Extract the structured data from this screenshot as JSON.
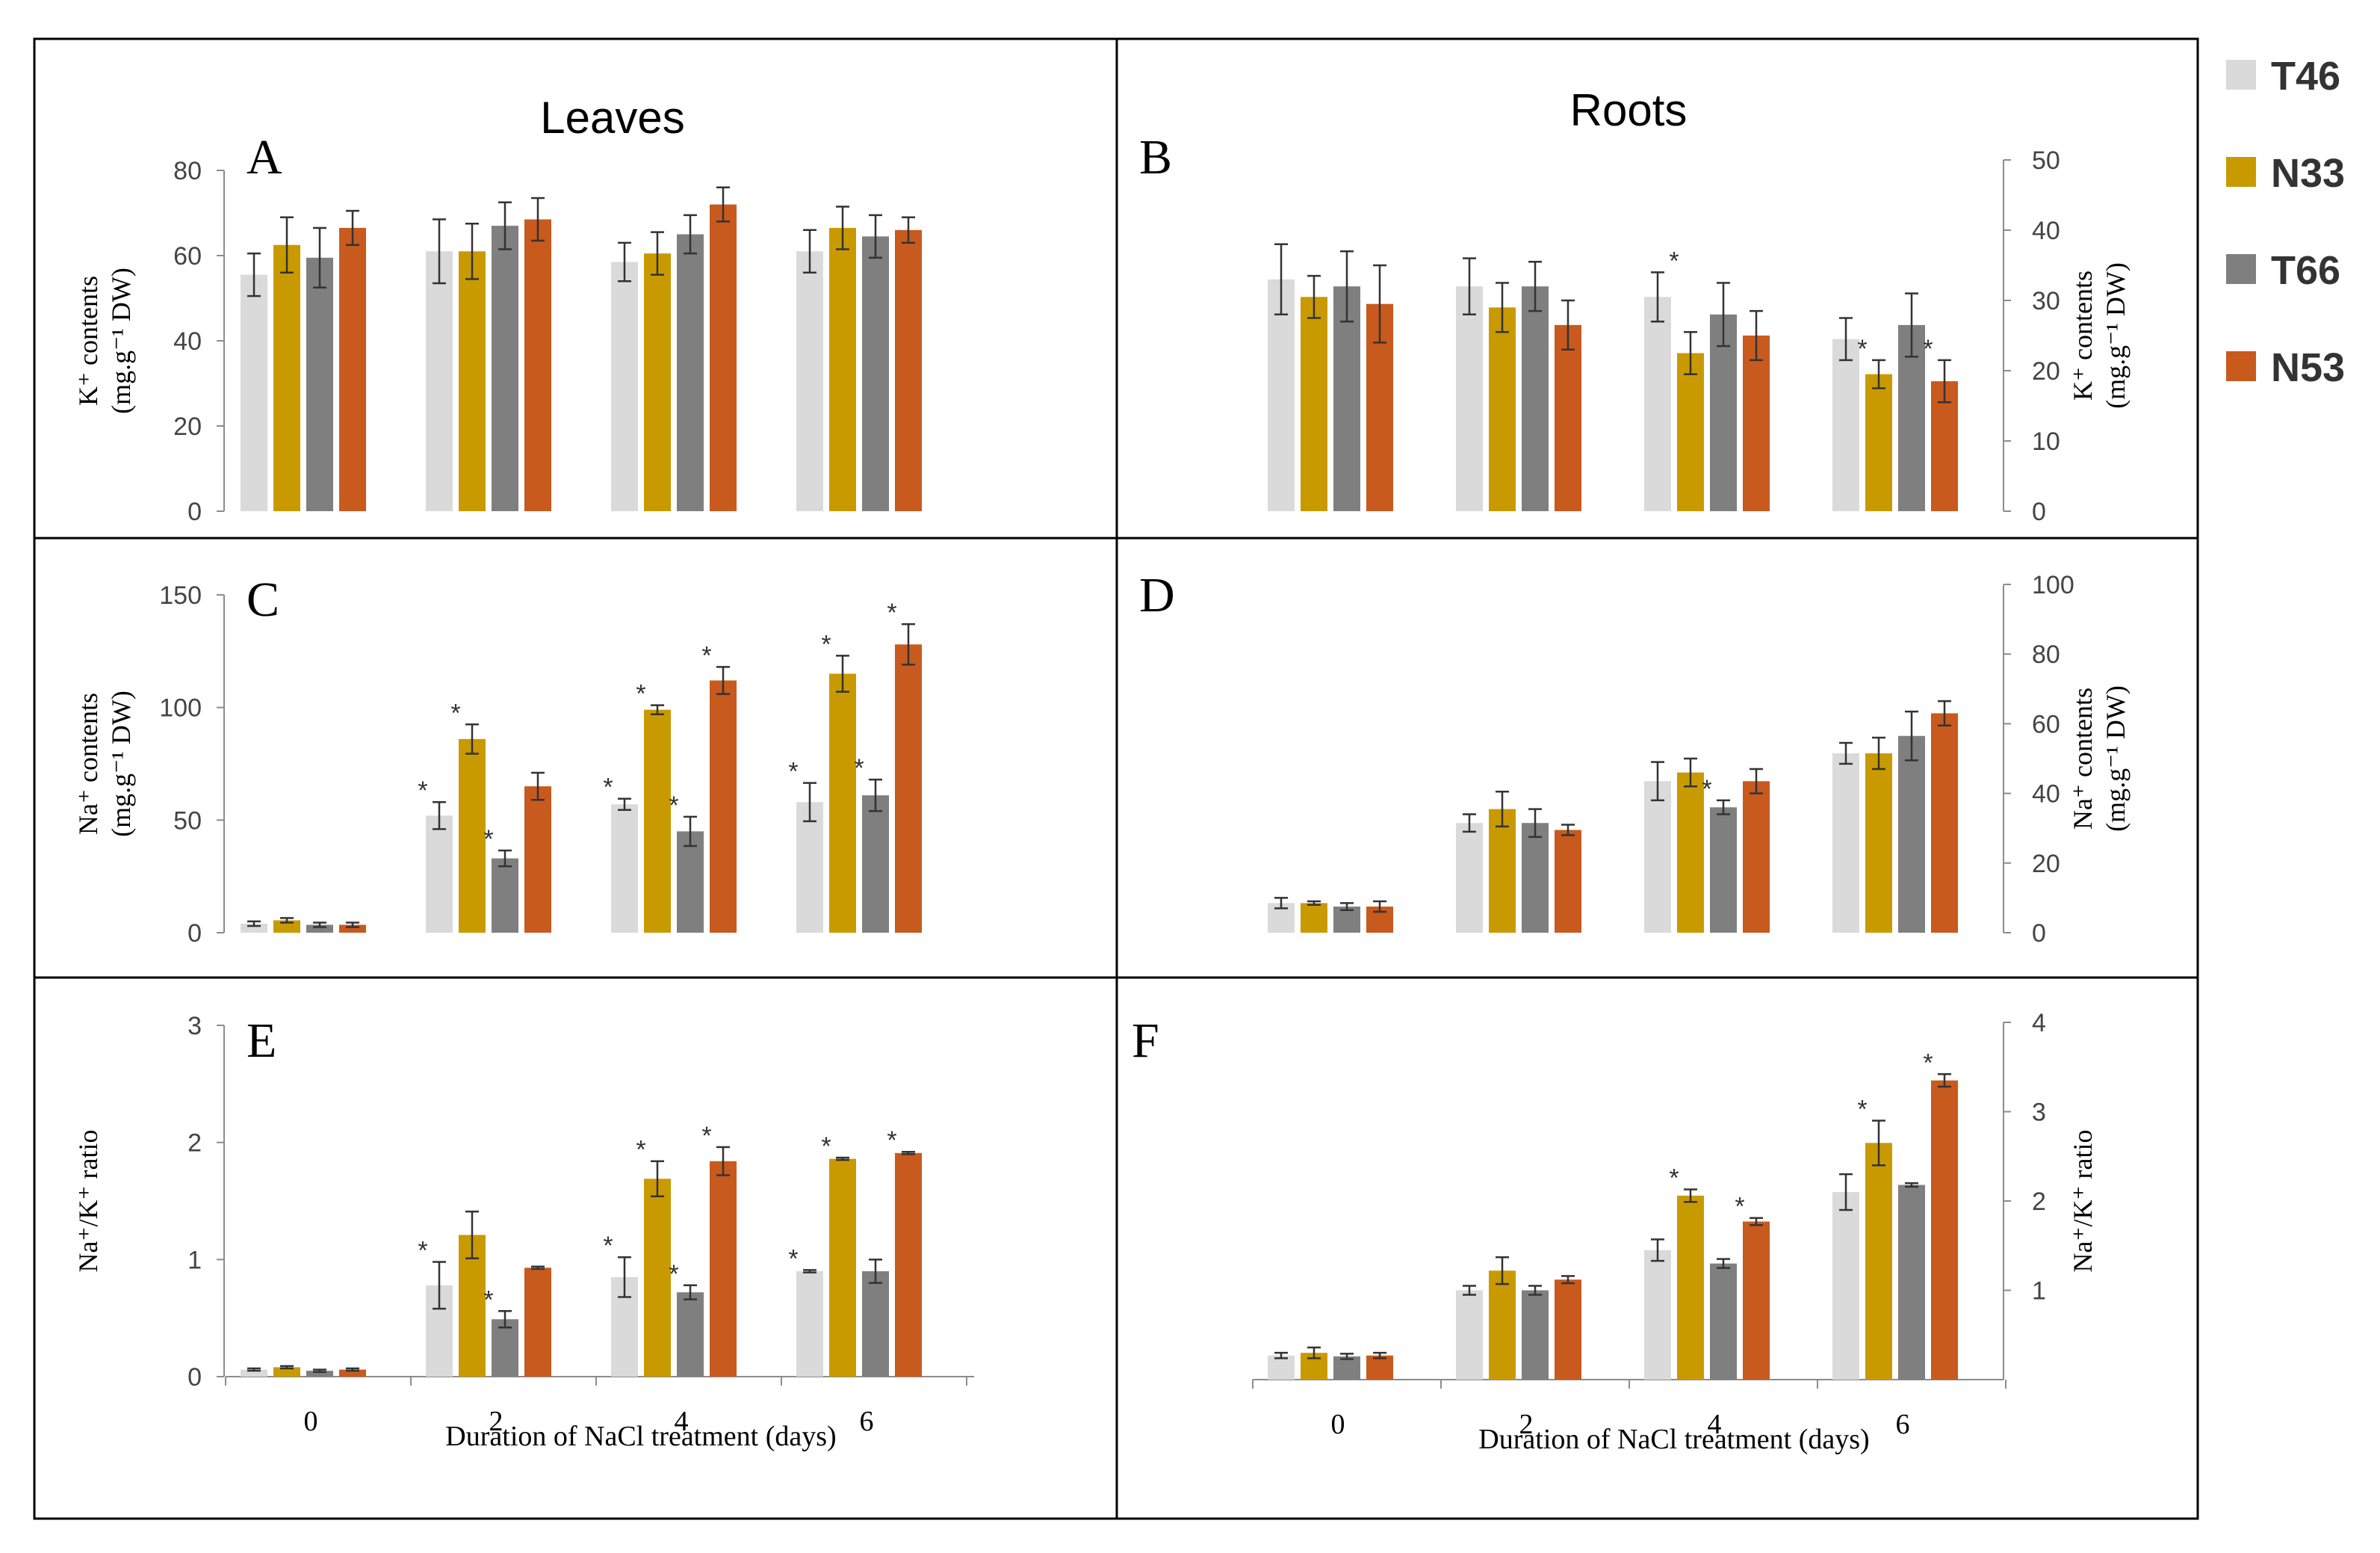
{
  "figure": {
    "column_titles": [
      "Leaves",
      "Roots"
    ],
    "xlabel": "Duration of NaCl treatment (days)",
    "legend": [
      {
        "name": "T46",
        "color": "#dadada"
      },
      {
        "name": "N33",
        "color": "#c99a00"
      },
      {
        "name": "T66",
        "color": "#7f7f7f"
      },
      {
        "name": "N53",
        "color": "#c85a1e"
      }
    ]
  },
  "chart_data": [
    {
      "panel": "A",
      "type": "bar",
      "organ": "Leaves",
      "ylabel_main": "K⁺ contents",
      "ylabel_unit": "(mg.g⁻¹ DW)",
      "yaxis_side": "left",
      "ylim": [
        0,
        80
      ],
      "yticks": [
        0,
        20,
        40,
        60,
        80
      ],
      "categories": [
        "0",
        "2",
        "4",
        "6"
      ],
      "series": [
        {
          "name": "T46",
          "values": [
            55.5,
            61,
            58.5,
            61
          ],
          "errors": [
            5,
            7.5,
            4.5,
            5
          ],
          "sig": [
            false,
            false,
            false,
            false
          ]
        },
        {
          "name": "N33",
          "values": [
            62.5,
            61,
            60.5,
            66.5
          ],
          "errors": [
            6.5,
            6.5,
            5,
            5
          ],
          "sig": [
            false,
            false,
            false,
            false
          ]
        },
        {
          "name": "T66",
          "values": [
            59.5,
            67,
            65,
            64.5
          ],
          "errors": [
            7,
            5.5,
            4.5,
            5
          ],
          "sig": [
            false,
            false,
            false,
            false
          ]
        },
        {
          "name": "N53",
          "values": [
            66.5,
            68.5,
            72,
            66
          ],
          "errors": [
            4,
            5,
            4,
            3
          ],
          "sig": [
            false,
            false,
            false,
            false
          ]
        }
      ]
    },
    {
      "panel": "B",
      "type": "bar",
      "organ": "Roots",
      "ylabel_main": "K⁺ contents",
      "ylabel_unit": "(mg.g⁻¹ DW)",
      "yaxis_side": "right",
      "ylim": [
        0,
        50
      ],
      "yticks": [
        0,
        10,
        20,
        30,
        40,
        50
      ],
      "categories": [
        "0",
        "2",
        "4",
        "6"
      ],
      "series": [
        {
          "name": "T46",
          "values": [
            33,
            32,
            30.5,
            24.5
          ],
          "errors": [
            5,
            4,
            3.5,
            3
          ],
          "sig": [
            false,
            false,
            true,
            false
          ]
        },
        {
          "name": "N33",
          "values": [
            30.5,
            29,
            22.5,
            19.5
          ],
          "errors": [
            3,
            3.5,
            3,
            2
          ],
          "sig": [
            false,
            false,
            false,
            true
          ]
        },
        {
          "name": "T66",
          "values": [
            32,
            32,
            28,
            26.5
          ],
          "errors": [
            5,
            3.5,
            4.5,
            4.5
          ],
          "sig": [
            false,
            false,
            false,
            false
          ]
        },
        {
          "name": "N53",
          "values": [
            29.5,
            26.5,
            25,
            18.5
          ],
          "errors": [
            5.5,
            3.5,
            3.5,
            3
          ],
          "sig": [
            false,
            false,
            false,
            true
          ]
        }
      ]
    },
    {
      "panel": "C",
      "type": "bar",
      "organ": "Leaves",
      "ylabel_main": "Na⁺ contents",
      "ylabel_unit": "(mg.g⁻¹ DW)",
      "yaxis_side": "left",
      "ylim": [
        0,
        150
      ],
      "yticks": [
        0,
        50,
        100,
        150
      ],
      "categories": [
        "0",
        "2",
        "4",
        "6"
      ],
      "series": [
        {
          "name": "T46",
          "values": [
            4,
            52,
            57,
            58
          ],
          "errors": [
            1,
            6,
            2.5,
            8.5
          ],
          "sig": [
            false,
            true,
            true,
            true
          ]
        },
        {
          "name": "N33",
          "values": [
            5.5,
            86,
            99,
            115
          ],
          "errors": [
            1,
            6.5,
            2,
            8
          ],
          "sig": [
            false,
            true,
            true,
            true
          ]
        },
        {
          "name": "T66",
          "values": [
            3.5,
            33,
            45,
            61
          ],
          "errors": [
            1,
            3.5,
            6.5,
            7
          ],
          "sig": [
            false,
            true,
            true,
            true
          ]
        },
        {
          "name": "N53",
          "values": [
            3.5,
            65,
            112,
            128
          ],
          "errors": [
            1,
            6,
            6,
            9
          ],
          "sig": [
            false,
            false,
            true,
            true
          ]
        }
      ]
    },
    {
      "panel": "D",
      "type": "bar",
      "organ": "Roots",
      "ylabel_main": "Na⁺ contents",
      "ylabel_unit": "(mg.g⁻¹ DW)",
      "yaxis_side": "right",
      "ylim": [
        0,
        100
      ],
      "yticks": [
        0,
        20,
        40,
        60,
        80,
        100
      ],
      "categories": [
        "0",
        "2",
        "4",
        "6"
      ],
      "series": [
        {
          "name": "T46",
          "values": [
            8.5,
            31.5,
            43.5,
            51.5
          ],
          "errors": [
            1.5,
            2.5,
            5.5,
            3
          ],
          "sig": [
            false,
            false,
            false,
            false
          ]
        },
        {
          "name": "N33",
          "values": [
            8.5,
            35.5,
            46,
            51.5
          ],
          "errors": [
            0.5,
            5,
            4,
            4.5
          ],
          "sig": [
            false,
            false,
            false,
            false
          ]
        },
        {
          "name": "T66",
          "values": [
            7.5,
            31.5,
            36,
            56.5
          ],
          "errors": [
            1,
            4,
            2,
            7
          ],
          "sig": [
            false,
            false,
            true,
            false
          ]
        },
        {
          "name": "N53",
          "values": [
            7.5,
            29.5,
            43.5,
            63
          ],
          "errors": [
            1.5,
            1.5,
            3.5,
            3.5
          ],
          "sig": [
            false,
            false,
            false,
            false
          ]
        }
      ]
    },
    {
      "panel": "E",
      "type": "bar",
      "organ": "Leaves",
      "ylabel_main": "Na⁺/K⁺ ratio",
      "ylabel_unit": "",
      "yaxis_side": "left",
      "ylim": [
        0,
        3
      ],
      "yticks": [
        0,
        1,
        2,
        3
      ],
      "xlabel": "Duration of NaCl treatment (days)",
      "categories": [
        "0",
        "2",
        "4",
        "6"
      ],
      "series": [
        {
          "name": "T46",
          "values": [
            0.06,
            0.78,
            0.85,
            0.9
          ],
          "errors": [
            0.01,
            0.2,
            0.17,
            0.01
          ],
          "sig": [
            false,
            true,
            true,
            true
          ]
        },
        {
          "name": "N33",
          "values": [
            0.08,
            1.21,
            1.69,
            1.86
          ],
          "errors": [
            0.01,
            0.2,
            0.15,
            0.01
          ],
          "sig": [
            false,
            false,
            true,
            true
          ]
        },
        {
          "name": "T66",
          "values": [
            0.05,
            0.49,
            0.72,
            0.9
          ],
          "errors": [
            0.01,
            0.07,
            0.06,
            0.1
          ],
          "sig": [
            false,
            true,
            true,
            false
          ]
        },
        {
          "name": "N53",
          "values": [
            0.06,
            0.93,
            1.84,
            1.91
          ],
          "errors": [
            0.01,
            0.01,
            0.12,
            0.01
          ],
          "sig": [
            false,
            false,
            true,
            true
          ]
        }
      ]
    },
    {
      "panel": "F",
      "type": "bar",
      "organ": "Roots",
      "ylabel_main": "Na⁺/K⁺ ratio",
      "ylabel_unit": "",
      "yaxis_side": "right",
      "ylim": [
        0,
        4
      ],
      "yticks": [
        1,
        2,
        3,
        4
      ],
      "xlabel": "Duration of NaCl treatment (days)",
      "categories": [
        "0",
        "2",
        "4",
        "6"
      ],
      "series": [
        {
          "name": "T46",
          "values": [
            0.27,
            1.0,
            1.45,
            2.1
          ],
          "errors": [
            0.03,
            0.05,
            0.12,
            0.2
          ],
          "sig": [
            false,
            false,
            false,
            false
          ]
        },
        {
          "name": "N33",
          "values": [
            0.3,
            1.22,
            2.06,
            2.65
          ],
          "errors": [
            0.06,
            0.15,
            0.07,
            0.25
          ],
          "sig": [
            false,
            false,
            true,
            true
          ]
        },
        {
          "name": "T66",
          "values": [
            0.26,
            1.0,
            1.3,
            2.18
          ],
          "errors": [
            0.03,
            0.05,
            0.05,
            0.02
          ],
          "sig": [
            false,
            false,
            false,
            false
          ]
        },
        {
          "name": "N53",
          "values": [
            0.27,
            1.12,
            1.77,
            3.35
          ],
          "errors": [
            0.03,
            0.04,
            0.04,
            0.07
          ],
          "sig": [
            false,
            false,
            true,
            true
          ]
        }
      ]
    }
  ]
}
